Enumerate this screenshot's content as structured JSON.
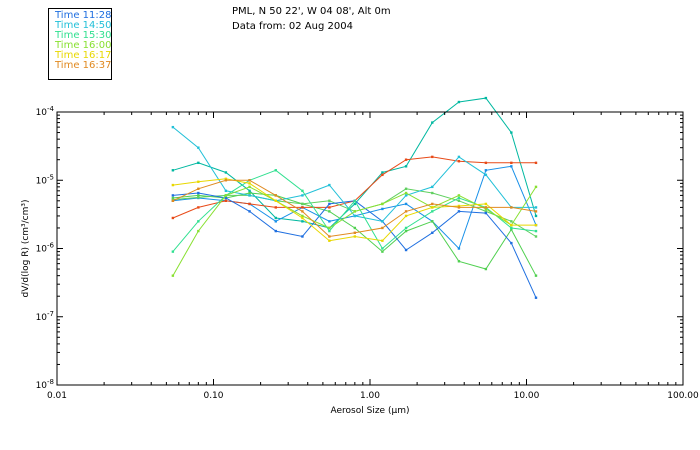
{
  "header": {
    "line1": "PML, N 50 22', W 04 08', Alt 0m",
    "line2": "Data from: 02 Aug 2004"
  },
  "chart_data": {
    "type": "line",
    "title": "",
    "xlabel": "Aerosol Size (µm)",
    "ylabel": "dV/d(log R) (cm³/cm³)",
    "x_scale": "log",
    "y_scale": "log",
    "xlim": [
      0.01,
      100
    ],
    "ylim": [
      1e-08,
      0.0001
    ],
    "grid": false,
    "legend": "top-left",
    "x_tick_labels": [
      "0.01",
      "0.10",
      "1.00",
      "10.00",
      "100.00"
    ],
    "y_tick_labels": [
      {
        "base": "10",
        "exp": "-4",
        "value": 0.0001
      },
      {
        "base": "10",
        "exp": "-5",
        "value": 1e-05
      },
      {
        "base": "10",
        "exp": "-6",
        "value": 1e-06
      },
      {
        "base": "10",
        "exp": "-7",
        "value": 1e-07
      },
      {
        "base": "10",
        "exp": "-8",
        "value": 1e-08
      }
    ],
    "x": [
      0.055,
      0.08,
      0.12,
      0.17,
      0.25,
      0.37,
      0.55,
      0.8,
      1.2,
      1.7,
      2.5,
      3.7,
      5.5,
      8,
      11.5
    ],
    "series": [
      {
        "name": "Time 11:28",
        "color": "#1f6fe0",
        "values": [
          6e-06,
          6.5e-06,
          5.5e-06,
          3.5e-06,
          1.8e-06,
          1.5e-06,
          4.5e-06,
          5e-06,
          2.5e-06,
          9.5e-07,
          1.7e-06,
          3.5e-06,
          3.3e-06,
          1.2e-06,
          1.9e-07
        ]
      },
      {
        "name": "Time 14:50",
        "color": "#22c0d8",
        "values": [
          6e-05,
          3e-05,
          7e-06,
          6e-06,
          5e-06,
          6e-06,
          8.5e-06,
          3e-06,
          2.5e-06,
          6e-06,
          8e-06,
          2.2e-05,
          1.2e-05,
          4e-06,
          4e-06
        ]
      },
      {
        "name": "Time 15:30",
        "color": "#30e090",
        "values": [
          9e-07,
          2.5e-06,
          6e-06,
          1e-05,
          1.4e-05,
          7e-06,
          1.8e-06,
          5e-06,
          1e-06,
          2e-06,
          3.5e-06,
          5.5e-06,
          4e-06,
          2e-06,
          1.8e-06
        ]
      },
      {
        "name": "Time 16:00",
        "color": "#88e030",
        "values": [
          4e-07,
          1.8e-06,
          6e-06,
          8e-06,
          5e-06,
          3e-06,
          2e-06,
          3.5e-06,
          4.5e-06,
          6.5e-06,
          4e-06,
          6e-06,
          3.8e-06,
          2.2e-06,
          8e-06
        ]
      },
      {
        "name": "Time 16:17",
        "color": "#e8d800",
        "values": [
          8.5e-06,
          9.5e-06,
          1.05e-05,
          9e-06,
          5e-06,
          2.8e-06,
          1.3e-06,
          1.5e-06,
          1.3e-06,
          3e-06,
          4e-06,
          4.2e-06,
          4.5e-06,
          2.2e-06,
          2.2e-06
        ]
      },
      {
        "name": "Time 16:37",
        "color": "#e08a20",
        "values": [
          5e-06,
          7.5e-06,
          1e-05,
          1e-05,
          6e-06,
          3.5e-06,
          1.5e-06,
          1.7e-06,
          2e-06,
          3.5e-06,
          4.5e-06,
          4e-06,
          4e-06,
          4e-06,
          3.5e-06
        ]
      }
    ],
    "extra_lines": [
      {
        "color": "#00b8a0",
        "values": [
          1.4e-05,
          1.8e-05,
          1.3e-05,
          7e-06,
          2.8e-06,
          2.5e-06,
          2e-06,
          4.5e-06,
          1.3e-05,
          1.6e-05,
          7e-05,
          0.00014,
          0.00016,
          5e-05,
          3e-06
        ]
      },
      {
        "color": "#1890e8",
        "values": [
          5e-06,
          5.5e-06,
          5e-06,
          4.5e-06,
          2.5e-06,
          4e-06,
          2.5e-06,
          3e-06,
          3.8e-06,
          4.5e-06,
          2.5e-06,
          1e-06,
          1.4e-05,
          1.6e-05,
          2.2e-06
        ]
      },
      {
        "color": "#50d050",
        "values": [
          5.5e-06,
          6e-06,
          5.5e-06,
          6.5e-06,
          6e-06,
          4.5e-06,
          3.5e-06,
          2e-06,
          9e-07,
          1.8e-06,
          2.5e-06,
          6.5e-07,
          5e-07,
          1.9e-06,
          4e-07
        ]
      },
      {
        "color": "#e84a18",
        "values": [
          2.8e-06,
          4e-06,
          5e-06,
          4.5e-06,
          4e-06,
          4e-06,
          4e-06,
          5e-06,
          1.2e-05,
          2e-05,
          2.2e-05,
          1.9e-05,
          1.8e-05,
          1.8e-05,
          1.8e-05
        ]
      },
      {
        "color": "#60d060",
        "values": [
          5.2e-06,
          5.6e-06,
          6e-06,
          6e-06,
          5e-06,
          4.5e-06,
          5e-06,
          3.5e-06,
          4.5e-06,
          7.5e-06,
          6.5e-06,
          5e-06,
          3.5e-06,
          2.5e-06,
          1.5e-06
        ]
      }
    ]
  }
}
